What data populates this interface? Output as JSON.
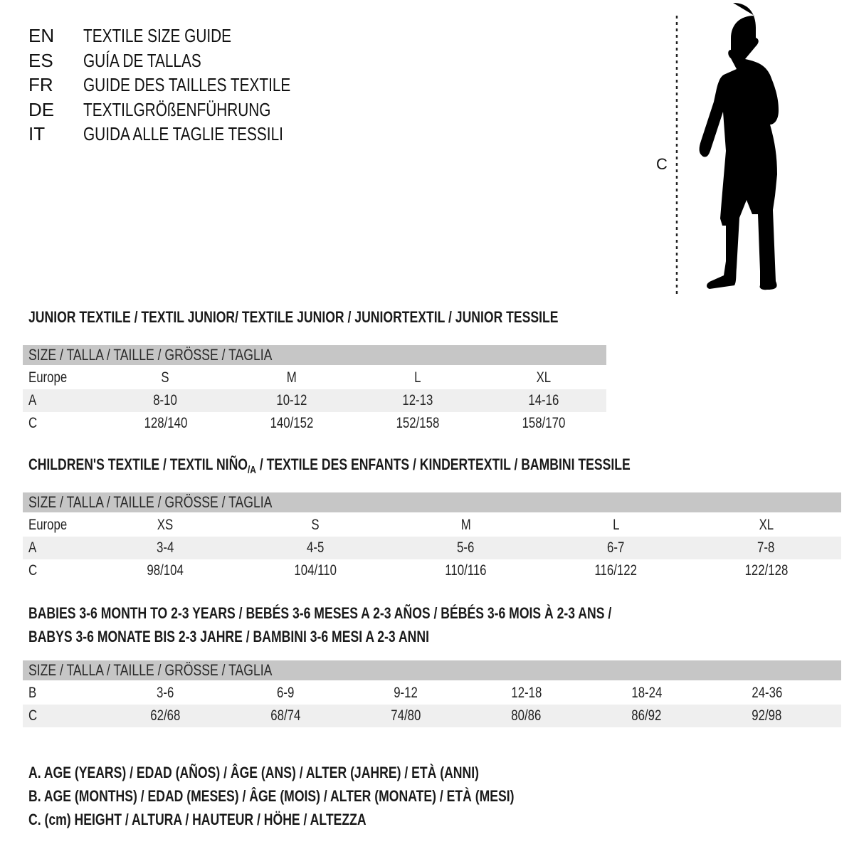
{
  "languages": [
    {
      "code": "EN",
      "title": "TEXTILE SIZE GUIDE"
    },
    {
      "code": "ES",
      "title": "GUÍA DE TALLAS"
    },
    {
      "code": "FR",
      "title": "GUIDE DES TAILLES TEXTILE"
    },
    {
      "code": "DE",
      "title": "TEXTILGRÖßENFÜHRUNG"
    },
    {
      "code": "IT",
      "title": "GUIDA ALLE TAGLIE TESSILI"
    }
  ],
  "figure": {
    "measure_label": "C",
    "icon": "child-silhouette-icon"
  },
  "header_label": "SIZE / TALLA / TAILLE / GRÖSSE / TAGLIA",
  "junior": {
    "title": "JUNIOR TEXTILE / TEXTIL JUNIOR/ TEXTILE JUNIOR / JUNIORTEXTIL / JUNIOR TESSILE",
    "rows": [
      {
        "label": "Europe",
        "values": [
          "S",
          "M",
          "L",
          "XL"
        ]
      },
      {
        "label": "A",
        "values": [
          "8-10",
          "10-12",
          "12-13",
          "14-16"
        ]
      },
      {
        "label": "C",
        "values": [
          "128/140",
          "140/152",
          "152/158",
          "158/170"
        ]
      }
    ]
  },
  "children": {
    "title": "CHILDREN'S TEXTILE / TEXTIL NIÑO",
    "title_sub": "/A",
    "title_rest": " / TEXTILE DES ENFANTS / KINDERTEXTIL / BAMBINI TESSILE",
    "rows": [
      {
        "label": "Europe",
        "values": [
          "XS",
          "S",
          "M",
          "L",
          "XL"
        ]
      },
      {
        "label": "A",
        "values": [
          "3-4",
          "4-5",
          "5-6",
          "6-7",
          "7-8"
        ]
      },
      {
        "label": "C",
        "values": [
          "98/104",
          "104/110",
          "110/116",
          "116/122",
          "122/128"
        ]
      }
    ]
  },
  "babies": {
    "title_line1": "BABIES 3-6 MONTH TO 2-3 YEARS / BEBÉS 3-6 MESES A 2-3 AÑOS / BÉBÉS 3-6 MOIS À 2-3 ANS /",
    "title_line2": "BABYS 3-6 MONATE BIS 2-3 JAHRE / BAMBINI 3-6 MESI A 2-3 ANNI",
    "rows": [
      {
        "label": "B",
        "values": [
          "3-6",
          "6-9",
          "9-12",
          "12-18",
          "18-24",
          "24-36"
        ]
      },
      {
        "label": "C",
        "values": [
          "62/68",
          "68/74",
          "74/80",
          "80/86",
          "86/92",
          "92/98"
        ]
      }
    ]
  },
  "legend": [
    "A. AGE (YEARS) / EDAD (AÑOS) / ÂGE (ANS) / ALTER (JAHRE) / ETÀ (ANNI)",
    "B. AGE (MONTHS) / EDAD (MESES) / ÂGE (MOIS) / ALTER (MONATE) / ETÀ (MESI)",
    "C. (cm) HEIGHT / ALTURA / HAUTEUR / HÖHE / ALTEZZA"
  ],
  "colors": {
    "header_bg": "#c6c6c6",
    "stripe_bg": "#efefef"
  }
}
